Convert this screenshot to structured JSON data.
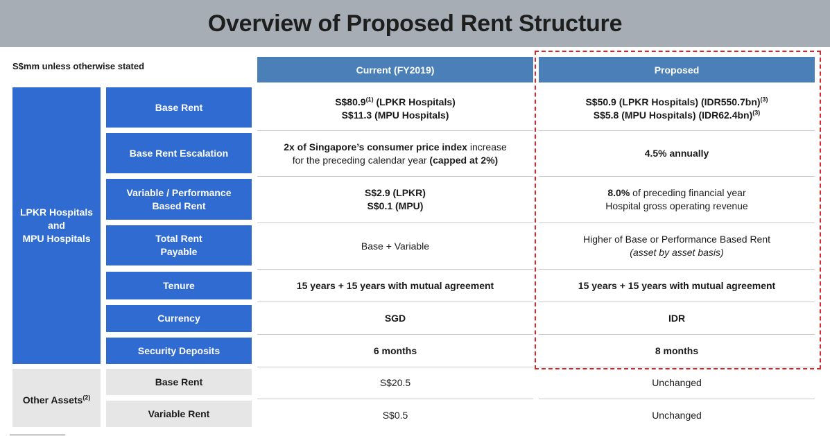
{
  "title": "Overview of Proposed Rent Structure",
  "unit_note": "S$mm unless otherwise stated",
  "columns": {
    "current": "Current (FY2019)",
    "proposed": "Proposed"
  },
  "groups": {
    "hospitals": {
      "line1": "LPKR Hospitals",
      "line2": "and",
      "line3": "MPU Hospitals"
    },
    "other": {
      "label": "Other Assets",
      "sup": "(2)"
    }
  },
  "rows": {
    "base_rent": {
      "label": "Base Rent",
      "current": {
        "l1_val": "S$80.9",
        "l1_sup": "(1)",
        "l1_rest": " (LPKR Hospitals)",
        "l2": "S$11.3 (MPU Hospitals)"
      },
      "proposed": {
        "l1": "S$50.9 (LPKR Hospitals) (IDR550.7bn)",
        "l1_sup": "(3)",
        "l2": "S$5.8 (MPU Hospitals) (IDR62.4bn)",
        "l2_sup": "(3)"
      }
    },
    "escalation": {
      "label": "Base Rent Escalation",
      "current": {
        "l1_bold": "2x of Singapore’s consumer price index",
        "l1_rest": " increase",
        "l2_rest": "for the preceding calendar year ",
        "l2_bold": "(capped at 2%)"
      },
      "proposed": "4.5% annually"
    },
    "variable": {
      "label_l1": "Variable / Performance",
      "label_l2": "Based Rent",
      "current": {
        "l1": "S$2.9 (LPKR)",
        "l2": "S$0.1 (MPU)"
      },
      "proposed": {
        "l1_bold": "8.0%",
        "l1_rest": " of preceding financial year",
        "l2": "Hospital gross operating revenue"
      }
    },
    "total": {
      "label_l1": "Total Rent",
      "label_l2": "Payable",
      "current": "Base + Variable",
      "proposed": {
        "l1": "Higher of Base or Performance Based Rent",
        "l2": "(asset by asset basis)"
      }
    },
    "tenure": {
      "label": "Tenure",
      "current": "15 years + 15 years with mutual agreement",
      "proposed": "15 years + 15 years with mutual agreement"
    },
    "currency": {
      "label": "Currency",
      "current": "SGD",
      "proposed": "IDR"
    },
    "deposits": {
      "label": "Security Deposits",
      "current": "6 months",
      "proposed": "8 months"
    },
    "other_base": {
      "label": "Base Rent",
      "current": "S$20.5",
      "proposed": "Unchanged"
    },
    "other_variable": {
      "label": "Variable Rent",
      "current": "S$0.5",
      "proposed": "Unchanged"
    }
  },
  "colors": {
    "header_blue": "#4a7fb7",
    "label_blue": "#2f6bd0",
    "highlight_red": "#d9262b",
    "title_gray": "#a6adb4"
  }
}
